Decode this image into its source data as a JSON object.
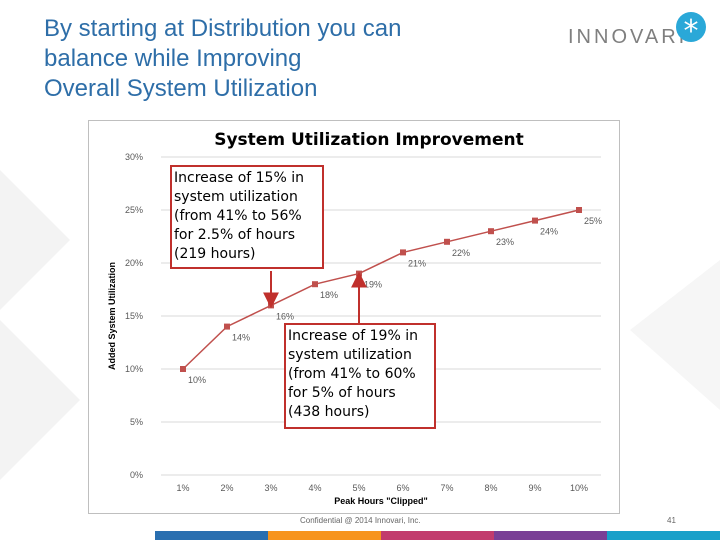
{
  "slide": {
    "title_lines": [
      "By starting at Distribution you can",
      "balance while Improving",
      "Overall System Utilization"
    ],
    "logo_text": "INNOVARI",
    "logo_symbol": "*",
    "footer": "Confidential @ 2014 Innovari, Inc.",
    "page_number": "41",
    "colors": {
      "title": "#2e6ea8",
      "series": "#c0504d",
      "callout_border": "#c0302c",
      "bar": [
        "#2a6fb0",
        "#f7941d",
        "#c23b6d",
        "#7a3f96",
        "#19a0c9"
      ]
    }
  },
  "callouts": {
    "first": "Increase of 15% in system utilization (from 41% to 56% for 2.5% of hours (219 hours)",
    "second": "Increase of 19% in system utilization (from 41% to 60% for 5% of hours (438 hours)"
  },
  "chart_data": {
    "type": "line",
    "title": "System Utilization Improvement",
    "xlabel": "Peak Hours \"Clipped\"",
    "ylabel": "Added System Utilization",
    "x": [
      "1%",
      "2%",
      "3%",
      "4%",
      "5%",
      "6%",
      "7%",
      "8%",
      "9%",
      "10%"
    ],
    "y_ticks": [
      "0%",
      "5%",
      "10%",
      "15%",
      "20%",
      "25%",
      "30%"
    ],
    "ylim": [
      0,
      30
    ],
    "grid": true,
    "series": [
      {
        "values": [
          10,
          14,
          16,
          18,
          19,
          21,
          22,
          23,
          24,
          25
        ],
        "labels": [
          "10%",
          "14%",
          "16%",
          "18%",
          "19%",
          "21%",
          "22%",
          "23%",
          "24%",
          "25%"
        ]
      }
    ]
  }
}
